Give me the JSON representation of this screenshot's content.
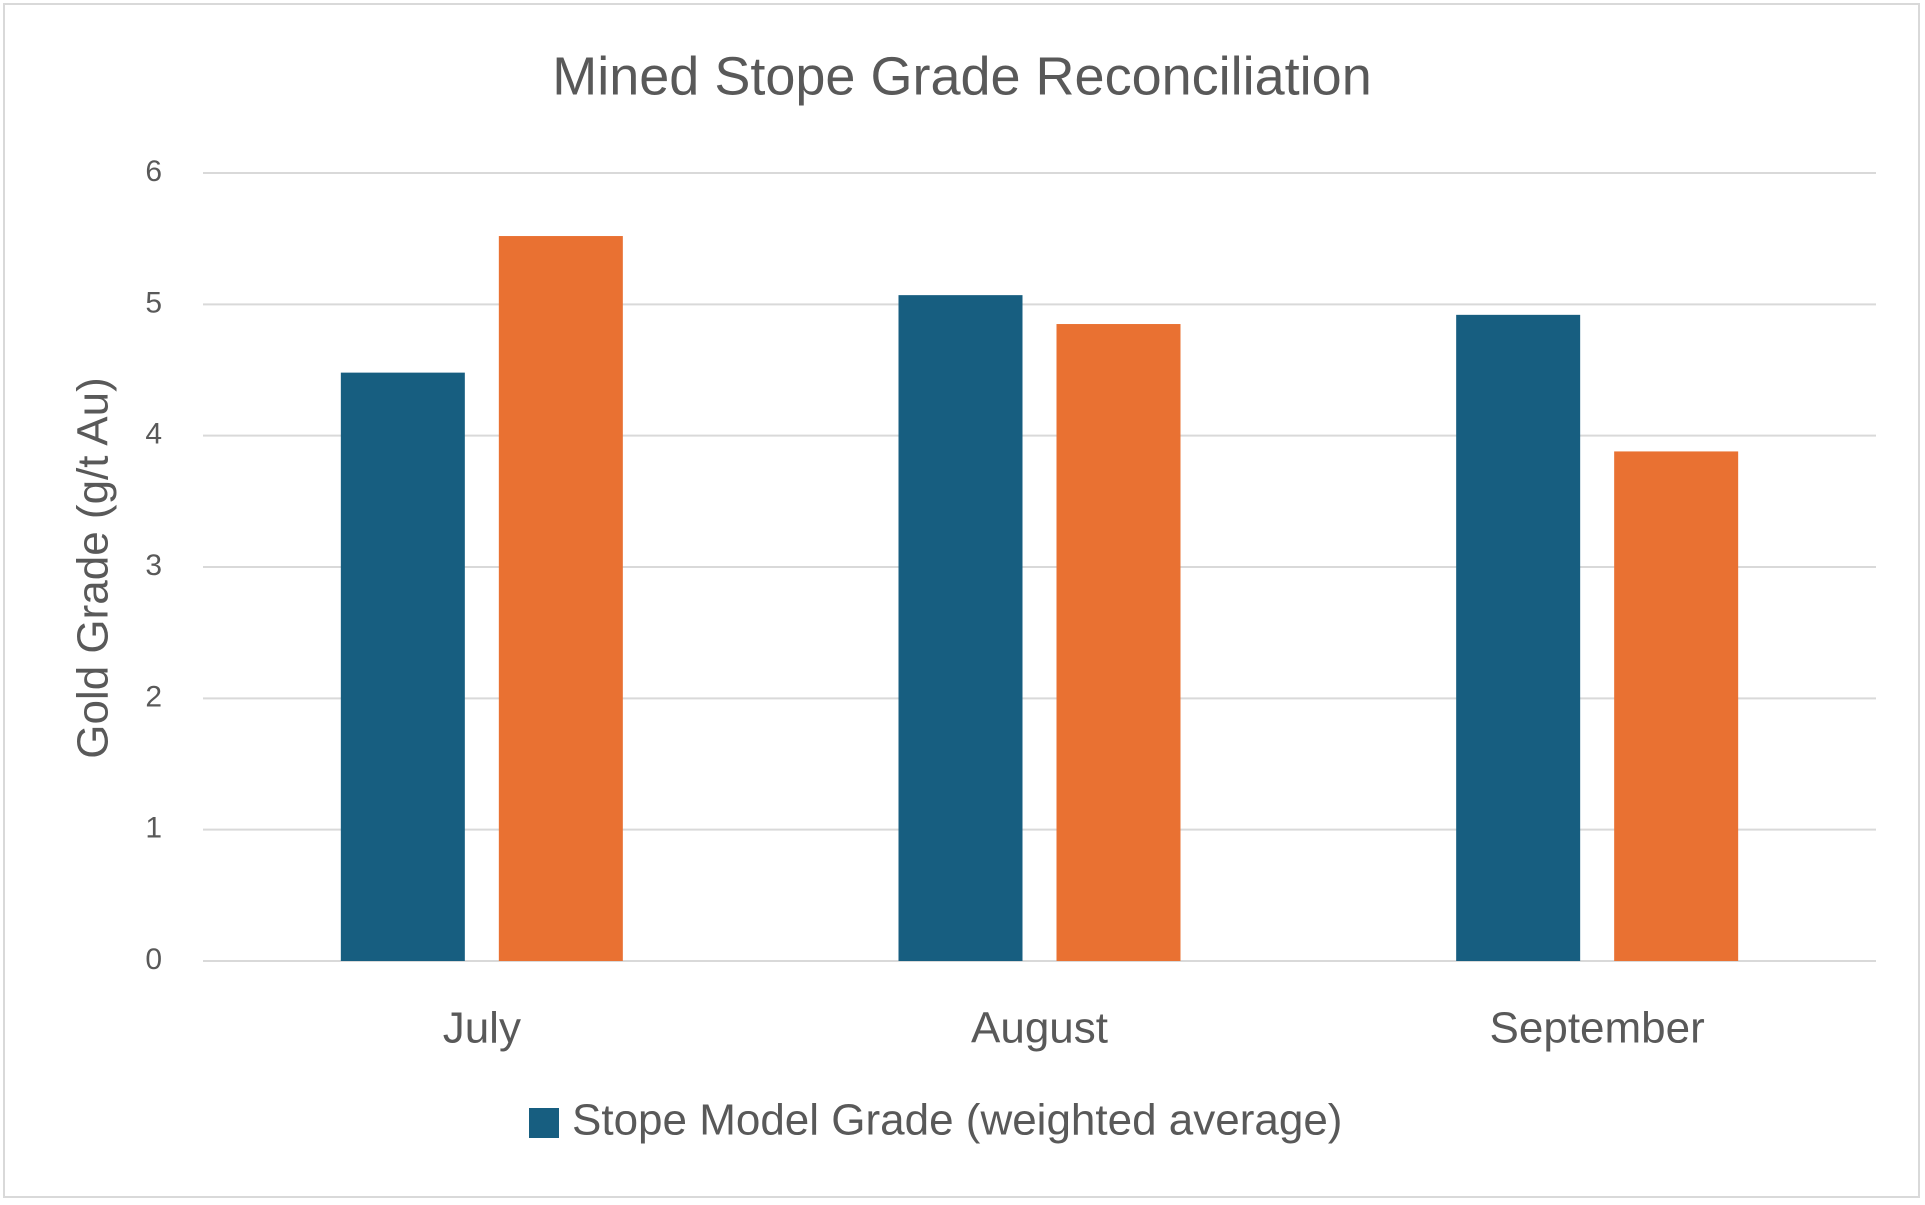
{
  "chart_data": {
    "type": "bar",
    "title": "Mined Stope Grade Reconciliation",
    "y_label": "Gold Grade (g/t Au)",
    "categories": [
      "July",
      "August",
      "September"
    ],
    "series": [
      {
        "name": "Stope Model Grade (weighted average)",
        "color": "#175e80",
        "values": [
          4.48,
          5.07,
          4.92
        ]
      },
      {
        "color": "#e97132",
        "values": [
          5.52,
          4.85,
          3.88
        ]
      }
    ],
    "ylim": [
      0,
      6
    ],
    "yticks": [
      0,
      1,
      2,
      3,
      4,
      5,
      6
    ],
    "grid": true,
    "legend": "bottom"
  }
}
